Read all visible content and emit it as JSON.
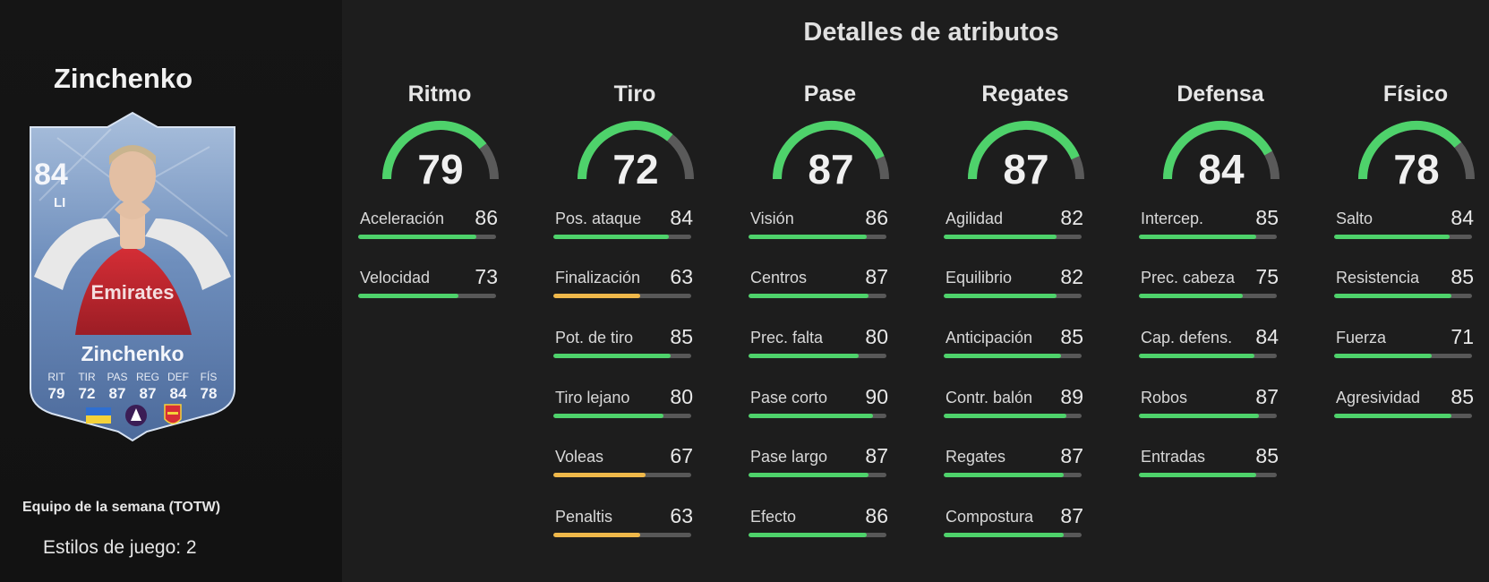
{
  "colors": {
    "green": "#4ed26b",
    "yellow": "#efb84a",
    "gauge_track": "#5a5a5a",
    "card_blue": "#5e7fad"
  },
  "player": {
    "name": "Zinchenko",
    "card": {
      "rating": "84",
      "position": "LI",
      "name": "Zinchenko",
      "stat_labels": [
        "RIT",
        "TIR",
        "PAS",
        "REG",
        "DEF",
        "FÍS"
      ],
      "stat_values": [
        "79",
        "72",
        "87",
        "87",
        "84",
        "78"
      ],
      "badge_icons": [
        "ukraine-flag-icon",
        "premier-league-icon",
        "arsenal-crest-icon"
      ]
    },
    "team_label": "Equipo de la semana (TOTW)",
    "playstyles": "Estilos de juego: 2"
  },
  "page_title": "Detalles de atributos",
  "categories": [
    {
      "name": "Ritmo",
      "value": 79,
      "attributes": [
        {
          "label": "Aceleración",
          "value": 86,
          "level": "green"
        },
        {
          "label": "Velocidad",
          "value": 73,
          "level": "green"
        }
      ]
    },
    {
      "name": "Tiro",
      "value": 72,
      "attributes": [
        {
          "label": "Pos. ataque",
          "value": 84,
          "level": "green"
        },
        {
          "label": "Finalización",
          "value": 63,
          "level": "yellow"
        },
        {
          "label": "Pot. de tiro",
          "value": 85,
          "level": "green"
        },
        {
          "label": "Tiro lejano",
          "value": 80,
          "level": "green"
        },
        {
          "label": "Voleas",
          "value": 67,
          "level": "yellow"
        },
        {
          "label": "Penaltis",
          "value": 63,
          "level": "yellow"
        }
      ]
    },
    {
      "name": "Pase",
      "value": 87,
      "attributes": [
        {
          "label": "Visión",
          "value": 86,
          "level": "green"
        },
        {
          "label": "Centros",
          "value": 87,
          "level": "green"
        },
        {
          "label": "Prec. falta",
          "value": 80,
          "level": "green"
        },
        {
          "label": "Pase corto",
          "value": 90,
          "level": "green"
        },
        {
          "label": "Pase largo",
          "value": 87,
          "level": "green"
        },
        {
          "label": "Efecto",
          "value": 86,
          "level": "green"
        }
      ]
    },
    {
      "name": "Regates",
      "value": 87,
      "attributes": [
        {
          "label": "Agilidad",
          "value": 82,
          "level": "green"
        },
        {
          "label": "Equilibrio",
          "value": 82,
          "level": "green"
        },
        {
          "label": "Anticipación",
          "value": 85,
          "level": "green"
        },
        {
          "label": "Contr. balón",
          "value": 89,
          "level": "green"
        },
        {
          "label": "Regates",
          "value": 87,
          "level": "green"
        },
        {
          "label": "Compostura",
          "value": 87,
          "level": "green"
        }
      ]
    },
    {
      "name": "Defensa",
      "value": 84,
      "attributes": [
        {
          "label": "Intercep.",
          "value": 85,
          "level": "green"
        },
        {
          "label": "Prec. cabeza",
          "value": 75,
          "level": "green"
        },
        {
          "label": "Cap. defens.",
          "value": 84,
          "level": "green"
        },
        {
          "label": "Robos",
          "value": 87,
          "level": "green"
        },
        {
          "label": "Entradas",
          "value": 85,
          "level": "green"
        }
      ]
    },
    {
      "name": "Físico",
      "value": 78,
      "attributes": [
        {
          "label": "Salto",
          "value": 84,
          "level": "green"
        },
        {
          "label": "Resistencia",
          "value": 85,
          "level": "green"
        },
        {
          "label": "Fuerza",
          "value": 71,
          "level": "green"
        },
        {
          "label": "Agresividad",
          "value": 85,
          "level": "green"
        }
      ]
    }
  ]
}
